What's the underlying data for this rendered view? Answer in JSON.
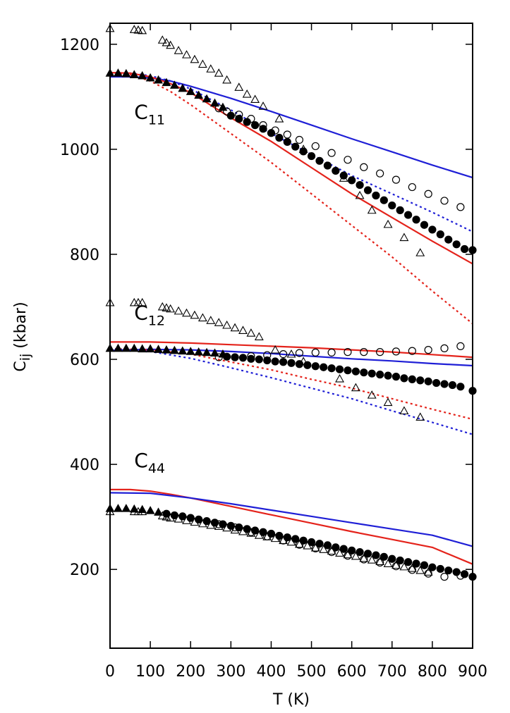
{
  "chart_data": {
    "type": "line",
    "xlabel": "T (K)",
    "ylabel_main": "C",
    "ylabel_sub": "ij",
    "ylabel_unit": " (kbar)",
    "xlim": [
      0,
      900
    ],
    "ylim": [
      50,
      1240
    ],
    "x_ticks": [
      0,
      100,
      200,
      300,
      400,
      500,
      600,
      700,
      800,
      900
    ],
    "y_ticks": [
      200,
      400,
      600,
      800,
      1000,
      1200
    ],
    "x_tick_labels": [
      "0",
      "100",
      "200",
      "300",
      "400",
      "500",
      "600",
      "700",
      "800",
      "900"
    ],
    "y_tick_labels": [
      "200",
      "400",
      "600",
      "800",
      "1000",
      "1200"
    ],
    "labels": [
      {
        "main": "C",
        "sub": "11",
        "x": 60,
        "y": 1058
      },
      {
        "main": "C",
        "sub": "12",
        "x": 60,
        "y": 676
      },
      {
        "main": "C",
        "sub": "44",
        "x": 60,
        "y": 395
      }
    ],
    "colors": {
      "blue": "#1f1fd6",
      "red": "#e4231b",
      "black": "#000000"
    },
    "series": [
      {
        "name": "C11 blue solid",
        "color": "blue",
        "style": "solid",
        "x": [
          0,
          50,
          100,
          150,
          200,
          300,
          400,
          500,
          600,
          700,
          800,
          900
        ],
        "y": [
          1138,
          1138,
          1136,
          1130,
          1120,
          1097,
          1072,
          1046,
          1020,
          995,
          970,
          946
        ]
      },
      {
        "name": "C11 blue dotted",
        "color": "blue",
        "style": "dotted",
        "x": [
          0,
          50,
          100,
          150,
          200,
          300,
          400,
          500,
          600,
          700,
          800,
          900
        ],
        "y": [
          1146,
          1145,
          1140,
          1130,
          1115,
          1075,
          1030,
          990,
          950,
          915,
          880,
          843
        ]
      },
      {
        "name": "C11 red solid",
        "color": "red",
        "style": "solid",
        "x": [
          0,
          50,
          100,
          150,
          200,
          300,
          400,
          500,
          600,
          700,
          800,
          900
        ],
        "y": [
          1146,
          1145,
          1138,
          1125,
          1108,
          1060,
          1015,
          965,
          915,
          870,
          825,
          782
        ]
      },
      {
        "name": "C11 red dotted",
        "color": "red",
        "style": "dotted",
        "x": [
          0,
          50,
          100,
          150,
          200,
          300,
          400,
          500,
          600,
          700,
          800,
          900
        ],
        "y": [
          1146,
          1142,
          1130,
          1110,
          1085,
          1030,
          975,
          915,
          855,
          795,
          730,
          668
        ]
      },
      {
        "name": "C12 red solid",
        "color": "red",
        "style": "solid",
        "x": [
          0,
          100,
          200,
          300,
          400,
          500,
          600,
          700,
          800,
          900
        ],
        "y": [
          633,
          633,
          631,
          628,
          625,
          622,
          618,
          614,
          609,
          604
        ]
      },
      {
        "name": "C12 blue solid",
        "color": "blue",
        "style": "solid",
        "x": [
          0,
          100,
          200,
          300,
          400,
          500,
          600,
          700,
          800,
          900
        ],
        "y": [
          617,
          619,
          618,
          615,
          611,
          606,
          601,
          597,
          592,
          588
        ]
      },
      {
        "name": "C12 red dotted",
        "color": "red",
        "style": "dotted",
        "x": [
          0,
          100,
          200,
          300,
          400,
          500,
          600,
          700,
          800,
          900
        ],
        "y": [
          620,
          618,
          610,
          595,
          580,
          562,
          545,
          525,
          505,
          486
        ]
      },
      {
        "name": "C12 blue dotted",
        "color": "blue",
        "style": "dotted",
        "x": [
          0,
          100,
          200,
          300,
          400,
          500,
          600,
          700,
          800,
          900
        ],
        "y": [
          620,
          615,
          602,
          584,
          565,
          545,
          525,
          502,
          480,
          457
        ]
      },
      {
        "name": "C44 red solid",
        "color": "red",
        "style": "solid",
        "x": [
          0,
          50,
          100,
          150,
          200,
          300,
          400,
          500,
          600,
          700,
          800,
          900
        ],
        "y": [
          352,
          352,
          349,
          343,
          336,
          320,
          304,
          288,
          272,
          257,
          242,
          210
        ]
      },
      {
        "name": "C44 blue solid",
        "color": "blue",
        "style": "solid",
        "x": [
          0,
          100,
          200,
          300,
          400,
          500,
          600,
          700,
          800,
          900
        ],
        "y": [
          346,
          345,
          336,
          325,
          313,
          301,
          289,
          277,
          265,
          244
        ]
      }
    ],
    "markers": [
      {
        "name": "C11 open triangles",
        "marker": "triangle-open",
        "x": [
          0,
          60,
          70,
          80,
          130,
          140,
          150,
          170,
          190,
          210,
          230,
          250,
          270,
          290,
          320,
          340,
          360,
          380,
          420,
          480,
          580,
          620,
          650,
          690,
          730,
          770
        ],
        "y": [
          1230,
          1228,
          1227,
          1226,
          1208,
          1203,
          1198,
          1188,
          1180,
          1171,
          1162,
          1153,
          1145,
          1132,
          1118,
          1105,
          1095,
          1082,
          1058,
          1000,
          945,
          912,
          884,
          857,
          832,
          803
        ]
      },
      {
        "name": "C11 filled triangles",
        "marker": "triangle-filled",
        "x": [
          0,
          20,
          40,
          60,
          80,
          100,
          120,
          140,
          160,
          180,
          200,
          220,
          240,
          260,
          280
        ],
        "y": [
          1145,
          1145,
          1144,
          1142,
          1140,
          1136,
          1132,
          1127,
          1122,
          1116,
          1110,
          1103,
          1096,
          1088,
          1080
        ]
      },
      {
        "name": "C11 open circles",
        "marker": "circle-open",
        "x": [
          270,
          290,
          320,
          350,
          380,
          410,
          440,
          470,
          510,
          550,
          590,
          630,
          670,
          710,
          750,
          790,
          830,
          870
        ],
        "y": [
          1078,
          1072,
          1066,
          1058,
          1046,
          1036,
          1028,
          1018,
          1006,
          993,
          980,
          966,
          954,
          942,
          928,
          915,
          902,
          890
        ]
      },
      {
        "name": "C11 filled circles",
        "marker": "circle-filled",
        "x": [
          300,
          320,
          340,
          360,
          380,
          400,
          420,
          440,
          460,
          480,
          500,
          520,
          540,
          560,
          580,
          600,
          620,
          640,
          660,
          680,
          700,
          720,
          740,
          760,
          780,
          800,
          820,
          840,
          860,
          880,
          900
        ],
        "y": [
          1064,
          1058,
          1052,
          1046,
          1039,
          1031,
          1022,
          1014,
          1005,
          996,
          987,
          978,
          969,
          959,
          950,
          941,
          932,
          922,
          912,
          903,
          893,
          884,
          875,
          866,
          856,
          847,
          838,
          828,
          819,
          810,
          808
        ]
      },
      {
        "name": "C12 open triangles",
        "marker": "triangle-open",
        "x": [
          0,
          60,
          70,
          80,
          130,
          140,
          150,
          170,
          190,
          210,
          230,
          250,
          270,
          290,
          310,
          330,
          350,
          370,
          410,
          450,
          480,
          570,
          610,
          650,
          690,
          730,
          770
        ],
        "y": [
          708,
          708,
          708,
          708,
          700,
          698,
          696,
          692,
          688,
          684,
          679,
          674,
          670,
          665,
          660,
          655,
          650,
          643,
          618,
          610,
          596,
          563,
          546,
          532,
          518,
          502,
          490
        ]
      },
      {
        "name": "C12 filled triangles",
        "marker": "triangle-filled",
        "x": [
          0,
          20,
          40,
          60,
          80,
          100,
          120,
          140,
          160,
          180,
          200,
          220,
          240,
          260,
          280
        ],
        "y": [
          621,
          621,
          621,
          621,
          620,
          620,
          619,
          618,
          617,
          616,
          615,
          614,
          613,
          612,
          610
        ]
      },
      {
        "name": "C12 open circles",
        "marker": "circle-open",
        "x": [
          270,
          310,
          350,
          390,
          430,
          470,
          510,
          550,
          590,
          630,
          670,
          710,
          750,
          790,
          830,
          870
        ],
        "y": [
          604,
          604,
          606,
          608,
          610,
          612,
          613,
          613,
          614,
          614,
          614,
          615,
          616,
          618,
          621,
          625
        ]
      },
      {
        "name": "C12 filled circles",
        "marker": "circle-filled",
        "x": [
          290,
          310,
          330,
          350,
          370,
          390,
          410,
          430,
          450,
          470,
          490,
          510,
          530,
          550,
          570,
          590,
          610,
          630,
          650,
          670,
          690,
          710,
          730,
          750,
          770,
          790,
          810,
          830,
          850,
          870,
          900
        ],
        "y": [
          605,
          604,
          603,
          601,
          600,
          598,
          596,
          595,
          593,
          591,
          589,
          587,
          585,
          583,
          581,
          579,
          577,
          575,
          573,
          571,
          569,
          567,
          564,
          562,
          560,
          558,
          555,
          553,
          551,
          548,
          540
        ]
      },
      {
        "name": "C44 filled triangles",
        "marker": "triangle-filled",
        "x": [
          0,
          20,
          40,
          60,
          80,
          100,
          120
        ],
        "y": [
          316,
          316,
          316,
          315,
          314,
          312,
          309
        ]
      },
      {
        "name": "C44 open triangles",
        "marker": "triangle-open",
        "x": [
          0,
          60,
          70,
          80,
          130,
          140,
          150,
          170,
          190,
          210,
          230,
          250,
          270,
          290,
          310,
          330,
          350,
          370,
          390,
          410,
          430,
          450,
          470,
          490,
          510,
          530,
          550,
          570,
          590,
          610,
          630,
          650,
          670,
          690,
          710,
          730,
          750,
          770,
          790
        ],
        "y": [
          310,
          310,
          310,
          310,
          302,
          300,
          298,
          296,
          293,
          290,
          287,
          284,
          282,
          279,
          275,
          272,
          269,
          265,
          262,
          259,
          255,
          252,
          248,
          245,
          241,
          238,
          235,
          231,
          228,
          225,
          221,
          218,
          215,
          211,
          208,
          205,
          202,
          198,
          195
        ]
      },
      {
        "name": "C44 filled circles",
        "marker": "circle-filled",
        "x": [
          140,
          160,
          180,
          200,
          220,
          240,
          260,
          280,
          300,
          320,
          340,
          360,
          380,
          400,
          420,
          440,
          460,
          480,
          500,
          520,
          540,
          560,
          580,
          600,
          620,
          640,
          660,
          680,
          700,
          720,
          740,
          760,
          780,
          800,
          820,
          840,
          860,
          880,
          900
        ],
        "y": [
          306,
          303,
          301,
          298,
          295,
          292,
          289,
          286,
          283,
          280,
          277,
          274,
          271,
          268,
          264,
          261,
          258,
          255,
          252,
          249,
          246,
          242,
          239,
          236,
          233,
          230,
          227,
          224,
          220,
          217,
          214,
          211,
          208,
          204,
          201,
          198,
          195,
          191,
          186
        ]
      },
      {
        "name": "C44 open circles",
        "marker": "circle-open",
        "x": [
          270,
          310,
          350,
          390,
          430,
          470,
          510,
          550,
          590,
          630,
          670,
          710,
          750,
          790,
          830,
          870
        ],
        "y": [
          286,
          280,
          271,
          263,
          255,
          247,
          240,
          233,
          226,
          219,
          213,
          206,
          199,
          192,
          186,
          188
        ]
      }
    ]
  }
}
